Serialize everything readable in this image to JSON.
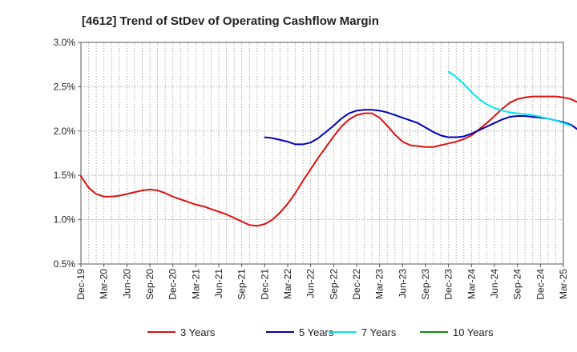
{
  "chart_data": {
    "type": "line",
    "title": "[4612]  Trend of StDev of Operating Cashflow Margin",
    "xlabel": "",
    "ylabel": "",
    "ylim": [
      0.5,
      3.0
    ],
    "yticks": [
      "0.5%",
      "1.0%",
      "1.5%",
      "2.0%",
      "2.5%",
      "3.0%"
    ],
    "ytick_values": [
      0.5,
      1.0,
      1.5,
      2.0,
      2.5,
      3.0
    ],
    "xticks": [
      "Dec-19",
      "Mar-20",
      "Jun-20",
      "Sep-20",
      "Dec-20",
      "Mar-21",
      "Jun-21",
      "Sep-21",
      "Dec-21",
      "Mar-22",
      "Jun-22",
      "Sep-22",
      "Dec-22",
      "Mar-23",
      "Jun-23",
      "Sep-23",
      "Dec-23",
      "Mar-24",
      "Jun-24",
      "Sep-24",
      "Dec-24",
      "Mar-25"
    ],
    "grid": true,
    "legend_position": "bottom",
    "series": [
      {
        "name": "3 Years",
        "color": "#dd1111",
        "points": [
          [
            0,
            1.49
          ],
          [
            1,
            1.36
          ],
          [
            2,
            1.29
          ],
          [
            3,
            1.26
          ],
          [
            4,
            1.26
          ],
          [
            5,
            1.27
          ],
          [
            6,
            1.29
          ],
          [
            7,
            1.31
          ],
          [
            8,
            1.33
          ],
          [
            9,
            1.34
          ],
          [
            10,
            1.33
          ],
          [
            11,
            1.3
          ],
          [
            12,
            1.26
          ],
          [
            13,
            1.23
          ],
          [
            14,
            1.2
          ],
          [
            15,
            1.17
          ],
          [
            16,
            1.15
          ],
          [
            17,
            1.12
          ],
          [
            18,
            1.09
          ],
          [
            19,
            1.06
          ],
          [
            20,
            1.02
          ],
          [
            21,
            0.98
          ],
          [
            22,
            0.94
          ],
          [
            23,
            0.93
          ],
          [
            24,
            0.95
          ],
          [
            25,
            1.0
          ],
          [
            26,
            1.08
          ],
          [
            27,
            1.18
          ],
          [
            28,
            1.3
          ],
          [
            29,
            1.44
          ],
          [
            30,
            1.57
          ],
          [
            31,
            1.7
          ],
          [
            32,
            1.82
          ],
          [
            33,
            1.94
          ],
          [
            34,
            2.05
          ],
          [
            35,
            2.13
          ],
          [
            36,
            2.18
          ],
          [
            37,
            2.2
          ],
          [
            38,
            2.2
          ],
          [
            39,
            2.15
          ],
          [
            40,
            2.06
          ],
          [
            41,
            1.96
          ],
          [
            42,
            1.88
          ],
          [
            43,
            1.84
          ],
          [
            44,
            1.83
          ],
          [
            45,
            1.82
          ],
          [
            46,
            1.82
          ],
          [
            47,
            1.84
          ],
          [
            48,
            1.86
          ],
          [
            49,
            1.88
          ],
          [
            50,
            1.91
          ],
          [
            51,
            1.95
          ],
          [
            52,
            2.02
          ],
          [
            53,
            2.09
          ],
          [
            54,
            2.17
          ],
          [
            55,
            2.25
          ],
          [
            56,
            2.32
          ],
          [
            57,
            2.36
          ],
          [
            58,
            2.38
          ],
          [
            59,
            2.39
          ],
          [
            60,
            2.39
          ],
          [
            61,
            2.39
          ],
          [
            62,
            2.39
          ],
          [
            63,
            2.38
          ],
          [
            64,
            2.36
          ],
          [
            65,
            2.32
          ]
        ]
      },
      {
        "name": "5 Years",
        "color": "#0000bb",
        "points": [
          [
            24,
            1.93
          ],
          [
            25,
            1.92
          ],
          [
            26,
            1.9
          ],
          [
            27,
            1.88
          ],
          [
            28,
            1.85
          ],
          [
            29,
            1.85
          ],
          [
            30,
            1.87
          ],
          [
            31,
            1.92
          ],
          [
            32,
            1.99
          ],
          [
            33,
            2.06
          ],
          [
            34,
            2.14
          ],
          [
            35,
            2.2
          ],
          [
            36,
            2.23
          ],
          [
            37,
            2.24
          ],
          [
            38,
            2.24
          ],
          [
            39,
            2.23
          ],
          [
            40,
            2.21
          ],
          [
            41,
            2.18
          ],
          [
            42,
            2.15
          ],
          [
            43,
            2.12
          ],
          [
            44,
            2.09
          ],
          [
            45,
            2.04
          ],
          [
            46,
            1.99
          ],
          [
            47,
            1.95
          ],
          [
            48,
            1.93
          ],
          [
            49,
            1.93
          ],
          [
            50,
            1.94
          ],
          [
            51,
            1.97
          ],
          [
            52,
            2.01
          ],
          [
            53,
            2.05
          ],
          [
            54,
            2.09
          ],
          [
            55,
            2.13
          ],
          [
            56,
            2.16
          ],
          [
            57,
            2.17
          ],
          [
            58,
            2.17
          ],
          [
            59,
            2.16
          ],
          [
            60,
            2.15
          ],
          [
            61,
            2.14
          ],
          [
            62,
            2.12
          ],
          [
            63,
            2.1
          ],
          [
            64,
            2.07
          ],
          [
            65,
            2.01
          ]
        ]
      },
      {
        "name": "7 Years",
        "color": "#00e5ee",
        "points": [
          [
            48,
            2.67
          ],
          [
            49,
            2.61
          ],
          [
            50,
            2.53
          ],
          [
            51,
            2.44
          ],
          [
            52,
            2.36
          ],
          [
            53,
            2.3
          ],
          [
            54,
            2.26
          ],
          [
            55,
            2.23
          ],
          [
            56,
            2.21
          ],
          [
            57,
            2.2
          ],
          [
            58,
            2.19
          ],
          [
            59,
            2.18
          ],
          [
            60,
            2.16
          ],
          [
            61,
            2.14
          ],
          [
            62,
            2.12
          ],
          [
            63,
            2.09
          ],
          [
            64,
            2.06
          ]
        ]
      },
      {
        "name": "10 Years",
        "color": "#118811",
        "points": []
      }
    ]
  }
}
